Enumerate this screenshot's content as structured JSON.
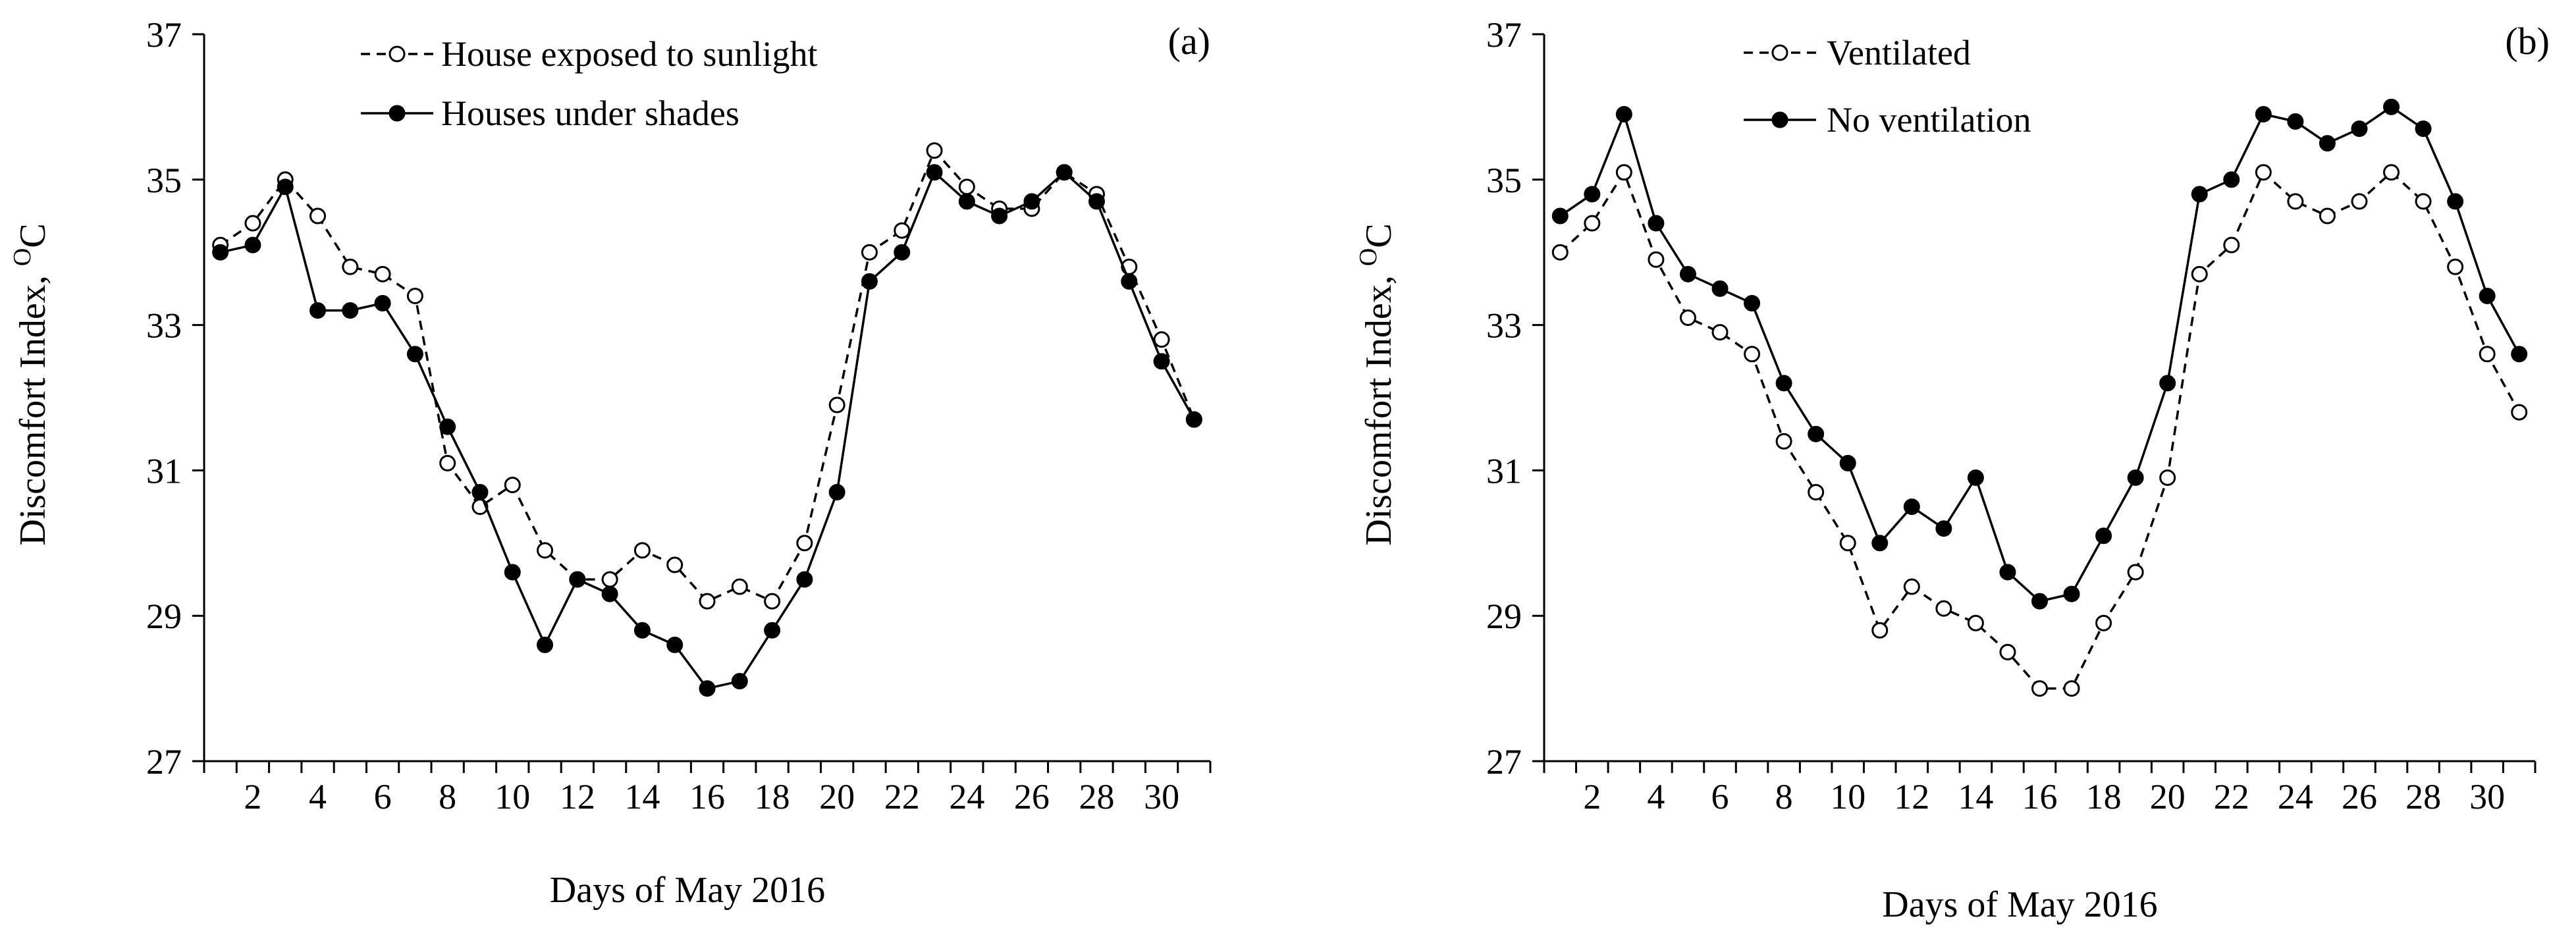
{
  "chart_data": [
    {
      "type": "line",
      "panel_label": "(a)",
      "xlabel": "Days of May 2016",
      "ylabel": "Discomfort  Index,",
      "ylabel_unit": "C",
      "ylabel_unit_superscript": "O",
      "ylim": [
        27,
        37
      ],
      "yticks": [
        27,
        29,
        31,
        33,
        35,
        37
      ],
      "xlim": [
        0,
        31
      ],
      "xticks": [
        2,
        4,
        6,
        8,
        10,
        12,
        14,
        16,
        18,
        20,
        22,
        24,
        26,
        28,
        30
      ],
      "legend_position": "top-left",
      "series": [
        {
          "name": "House exposed to sunlight",
          "style": "dashed-open-circle",
          "x": [
            1,
            2,
            3,
            4,
            5,
            6,
            7,
            8,
            9,
            10,
            11,
            12,
            13,
            14,
            15,
            16,
            17,
            18,
            19,
            20,
            21,
            22,
            23,
            24,
            25,
            26,
            27,
            28,
            29,
            30,
            31
          ],
          "values": [
            34.1,
            34.4,
            35.0,
            34.5,
            33.8,
            33.7,
            33.4,
            31.1,
            30.5,
            30.8,
            29.9,
            29.5,
            29.5,
            29.9,
            29.7,
            29.2,
            29.4,
            29.2,
            30.0,
            31.9,
            34.0,
            34.3,
            35.4,
            34.9,
            34.6,
            34.6,
            35.1,
            34.8,
            33.8,
            32.8,
            31.7
          ]
        },
        {
          "name": "Houses under shades",
          "style": "solid-filled-circle",
          "x": [
            1,
            2,
            3,
            4,
            5,
            6,
            7,
            8,
            9,
            10,
            11,
            12,
            13,
            14,
            15,
            16,
            17,
            18,
            19,
            20,
            21,
            22,
            23,
            24,
            25,
            26,
            27,
            28,
            29,
            30,
            31
          ],
          "values": [
            34.0,
            34.1,
            34.9,
            33.2,
            33.2,
            33.3,
            32.6,
            31.6,
            30.7,
            29.6,
            28.6,
            29.5,
            29.3,
            28.8,
            28.6,
            28.0,
            28.1,
            28.8,
            29.5,
            30.7,
            33.6,
            34.0,
            35.1,
            34.7,
            34.5,
            34.7,
            35.1,
            34.7,
            33.6,
            32.5,
            31.7
          ]
        }
      ]
    },
    {
      "type": "line",
      "panel_label": "(b)",
      "xlabel": "Days of May 2016",
      "ylabel": "Discomfort  Index,",
      "ylabel_unit": "C",
      "ylabel_unit_superscript": "O",
      "ylim": [
        27,
        37
      ],
      "yticks": [
        27,
        29,
        31,
        33,
        35,
        37
      ],
      "xlim": [
        0,
        31
      ],
      "xticks": [
        2,
        4,
        6,
        8,
        10,
        12,
        14,
        16,
        18,
        20,
        22,
        24,
        26,
        28,
        30
      ],
      "legend_position": "top-left",
      "series": [
        {
          "name": "Ventilated",
          "style": "dashed-open-circle",
          "x": [
            1,
            2,
            3,
            4,
            5,
            6,
            7,
            8,
            9,
            10,
            11,
            12,
            13,
            14,
            15,
            16,
            17,
            18,
            19,
            20,
            21,
            22,
            23,
            24,
            25,
            26,
            27,
            28,
            29,
            30,
            31
          ],
          "values": [
            34.0,
            34.4,
            35.1,
            33.9,
            33.1,
            32.9,
            32.6,
            31.4,
            30.7,
            30.0,
            28.8,
            29.4,
            29.1,
            28.9,
            28.5,
            28.0,
            28.0,
            28.9,
            29.6,
            30.9,
            33.7,
            34.1,
            35.1,
            34.7,
            34.5,
            34.7,
            35.1,
            34.7,
            33.8,
            32.6,
            31.8
          ]
        },
        {
          "name": "No ventilation",
          "style": "solid-filled-circle",
          "x": [
            1,
            2,
            3,
            4,
            5,
            6,
            7,
            8,
            9,
            10,
            11,
            12,
            13,
            14,
            15,
            16,
            17,
            18,
            19,
            20,
            21,
            22,
            23,
            24,
            25,
            26,
            27,
            28,
            29,
            30,
            31
          ],
          "values": [
            34.5,
            34.8,
            35.9,
            34.4,
            33.7,
            33.5,
            33.3,
            32.2,
            31.5,
            31.1,
            30.0,
            30.5,
            30.2,
            30.9,
            29.6,
            29.2,
            29.3,
            30.1,
            30.9,
            32.2,
            34.8,
            35.0,
            35.9,
            35.8,
            35.5,
            35.7,
            36.0,
            35.7,
            34.7,
            33.4,
            32.6
          ]
        }
      ]
    }
  ]
}
